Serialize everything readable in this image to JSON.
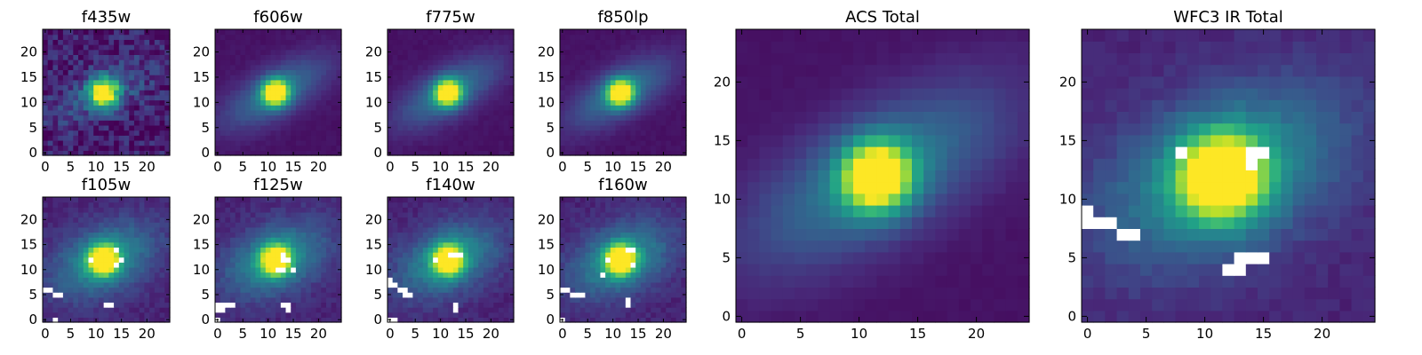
{
  "figure": {
    "colormap": "viridis",
    "masked_color": "#ffffff"
  },
  "chart_data": [
    {
      "type": "heatmap",
      "title": "f435w",
      "grid": false,
      "xlim": [
        -0.5,
        24.5
      ],
      "ylim": [
        -0.5,
        24.5
      ],
      "xticks": [
        "0",
        "5",
        "10",
        "15",
        "20"
      ],
      "yticks": [
        "0",
        "5",
        "10",
        "15",
        "20"
      ],
      "source": {
        "center": [
          11.5,
          12.0
        ],
        "peak": 0.95,
        "core_sigma": 2.0,
        "halo_sigma": [
          7.0,
          3.0
        ],
        "halo_amp": 0.22,
        "halo_angle_deg": 25,
        "background": 0.08,
        "noise": 0.12
      },
      "masked_pixels": []
    },
    {
      "type": "heatmap",
      "title": "f606w",
      "grid": false,
      "xlim": [
        -0.5,
        24.5
      ],
      "ylim": [
        -0.5,
        24.5
      ],
      "xticks": [
        "0",
        "5",
        "10",
        "15",
        "20"
      ],
      "yticks": [
        "0",
        "5",
        "10",
        "15",
        "20"
      ],
      "source": {
        "center": [
          11.5,
          12.0
        ],
        "peak": 1.0,
        "core_sigma": 1.8,
        "halo_sigma": [
          8.0,
          3.2
        ],
        "halo_amp": 0.35,
        "halo_angle_deg": 30,
        "background": 0.05,
        "noise": 0.015
      },
      "masked_pixels": []
    },
    {
      "type": "heatmap",
      "title": "f775w",
      "grid": false,
      "xlim": [
        -0.5,
        24.5
      ],
      "ylim": [
        -0.5,
        24.5
      ],
      "xticks": [
        "0",
        "5",
        "10",
        "15",
        "20"
      ],
      "yticks": [
        "0",
        "5",
        "10",
        "15",
        "20"
      ],
      "source": {
        "center": [
          11.5,
          12.0
        ],
        "peak": 1.0,
        "core_sigma": 1.8,
        "halo_sigma": [
          8.0,
          3.2
        ],
        "halo_amp": 0.35,
        "halo_angle_deg": 30,
        "background": 0.05,
        "noise": 0.015
      },
      "masked_pixels": []
    },
    {
      "type": "heatmap",
      "title": "f850lp",
      "grid": false,
      "xlim": [
        -0.5,
        24.5
      ],
      "ylim": [
        -0.5,
        24.5
      ],
      "xticks": [
        "0",
        "5",
        "10",
        "15",
        "20"
      ],
      "yticks": [
        "0",
        "5",
        "10",
        "15",
        "20"
      ],
      "source": {
        "center": [
          11.5,
          12.0
        ],
        "peak": 1.0,
        "core_sigma": 1.8,
        "halo_sigma": [
          8.0,
          3.2
        ],
        "halo_amp": 0.35,
        "halo_angle_deg": 30,
        "background": 0.05,
        "noise": 0.015
      },
      "masked_pixels": []
    },
    {
      "type": "heatmap",
      "title": "ACS Total",
      "grid": false,
      "xlim": [
        -0.5,
        24.5
      ],
      "ylim": [
        -0.5,
        24.5
      ],
      "xticks": [
        "0",
        "5",
        "10",
        "15",
        "20"
      ],
      "yticks": [
        "0",
        "5",
        "10",
        "15",
        "20"
      ],
      "source": {
        "center": [
          11.5,
          12.0
        ],
        "peak": 1.0,
        "core_sigma": 2.0,
        "halo_sigma": [
          8.5,
          3.6
        ],
        "halo_amp": 0.38,
        "halo_angle_deg": 30,
        "background": 0.05,
        "noise": 0.01
      },
      "masked_pixels": []
    },
    {
      "type": "heatmap",
      "title": "WFC3 IR Total",
      "grid": false,
      "xlim": [
        -0.5,
        24.5
      ],
      "ylim": [
        -0.5,
        24.5
      ],
      "xticks": [
        "0",
        "5",
        "10",
        "15",
        "20"
      ],
      "yticks": [
        "0",
        "5",
        "10",
        "15",
        "20"
      ],
      "source": {
        "center": [
          11.5,
          12.0
        ],
        "peak": 1.0,
        "core_sigma": 2.4,
        "halo_sigma": [
          7.5,
          4.5
        ],
        "halo_amp": 0.45,
        "halo_angle_deg": 25,
        "background": 0.1,
        "noise": 0.03
      },
      "masked_pixels": [
        [
          0,
          9
        ],
        [
          0,
          8
        ],
        [
          1,
          8
        ],
        [
          2,
          8
        ],
        [
          3,
          7
        ],
        [
          4,
          7
        ],
        [
          8,
          14
        ],
        [
          14,
          14
        ],
        [
          15,
          14
        ],
        [
          14,
          13
        ],
        [
          13,
          5
        ],
        [
          14,
          5
        ],
        [
          15,
          5
        ],
        [
          12,
          4
        ],
        [
          13,
          4
        ]
      ]
    },
    {
      "type": "heatmap",
      "title": "f105w",
      "grid": false,
      "xlim": [
        -0.5,
        24.5
      ],
      "ylim": [
        -0.5,
        24.5
      ],
      "xticks": [
        "0",
        "5",
        "10",
        "15",
        "20"
      ],
      "yticks": [
        "0",
        "5",
        "10",
        "15",
        "20"
      ],
      "source": {
        "center": [
          11.5,
          12.0
        ],
        "peak": 1.0,
        "core_sigma": 2.0,
        "halo_sigma": [
          7.5,
          4.5
        ],
        "halo_amp": 0.42,
        "halo_angle_deg": 25,
        "background": 0.1,
        "noise": 0.04
      },
      "masked_pixels": [
        [
          14,
          14
        ],
        [
          9,
          12
        ],
        [
          14,
          11
        ],
        [
          15,
          12
        ],
        [
          0,
          6
        ],
        [
          1,
          6
        ],
        [
          2,
          5
        ],
        [
          3,
          5
        ],
        [
          12,
          3
        ],
        [
          13,
          3
        ],
        [
          2,
          0
        ]
      ]
    },
    {
      "type": "heatmap",
      "title": "f125w",
      "grid": false,
      "xlim": [
        -0.5,
        24.5
      ],
      "ylim": [
        -0.5,
        24.5
      ],
      "xticks": [
        "0",
        "5",
        "10",
        "15",
        "20"
      ],
      "yticks": [
        "0",
        "5",
        "10",
        "15",
        "20"
      ],
      "source": {
        "center": [
          11.5,
          12.0
        ],
        "peak": 1.0,
        "core_sigma": 2.0,
        "halo_sigma": [
          7.5,
          4.5
        ],
        "halo_amp": 0.42,
        "halo_angle_deg": 25,
        "background": 0.1,
        "noise": 0.04
      },
      "masked_pixels": [
        [
          13,
          13
        ],
        [
          13,
          12
        ],
        [
          14,
          12
        ],
        [
          12,
          10
        ],
        [
          13,
          10
        ],
        [
          15,
          10
        ],
        [
          0,
          3
        ],
        [
          1,
          3
        ],
        [
          2,
          3
        ],
        [
          3,
          3
        ],
        [
          0,
          2
        ],
        [
          1,
          2
        ],
        [
          13,
          3
        ],
        [
          14,
          3
        ],
        [
          14,
          2
        ],
        [
          0,
          0
        ]
      ]
    },
    {
      "type": "heatmap",
      "title": "f140w",
      "grid": false,
      "xlim": [
        -0.5,
        24.5
      ],
      "ylim": [
        -0.5,
        24.5
      ],
      "xticks": [
        "0",
        "5",
        "10",
        "15",
        "20"
      ],
      "yticks": [
        "0",
        "5",
        "10",
        "15",
        "20"
      ],
      "source": {
        "center": [
          11.5,
          12.0
        ],
        "peak": 1.0,
        "core_sigma": 2.0,
        "halo_sigma": [
          7.5,
          4.5
        ],
        "halo_amp": 0.42,
        "halo_angle_deg": 25,
        "background": 0.1,
        "noise": 0.04
      },
      "masked_pixels": [
        [
          12,
          13
        ],
        [
          13,
          13
        ],
        [
          14,
          13
        ],
        [
          9,
          12
        ],
        [
          0,
          8
        ],
        [
          0,
          7
        ],
        [
          1,
          7
        ],
        [
          2,
          6
        ],
        [
          3,
          6
        ],
        [
          3,
          5
        ],
        [
          4,
          5
        ],
        [
          13,
          3
        ],
        [
          13,
          2
        ],
        [
          0,
          0
        ],
        [
          1,
          0
        ]
      ]
    },
    {
      "type": "heatmap",
      "title": "f160w",
      "grid": false,
      "xlim": [
        -0.5,
        24.5
      ],
      "ylim": [
        -0.5,
        24.5
      ],
      "xticks": [
        "0",
        "5",
        "10",
        "15",
        "20"
      ],
      "yticks": [
        "0",
        "5",
        "10",
        "15",
        "20"
      ],
      "source": {
        "center": [
          11.5,
          12.0
        ],
        "peak": 1.0,
        "core_sigma": 2.0,
        "halo_sigma": [
          7.5,
          4.5
        ],
        "halo_amp": 0.42,
        "halo_angle_deg": 25,
        "background": 0.1,
        "noise": 0.04
      },
      "masked_pixels": [
        [
          13,
          14
        ],
        [
          14,
          14
        ],
        [
          9,
          12
        ],
        [
          14,
          11
        ],
        [
          8,
          9
        ],
        [
          0,
          6
        ],
        [
          1,
          6
        ],
        [
          2,
          5
        ],
        [
          3,
          5
        ],
        [
          4,
          5
        ],
        [
          13,
          4
        ],
        [
          13,
          3
        ],
        [
          0,
          0
        ]
      ]
    }
  ]
}
